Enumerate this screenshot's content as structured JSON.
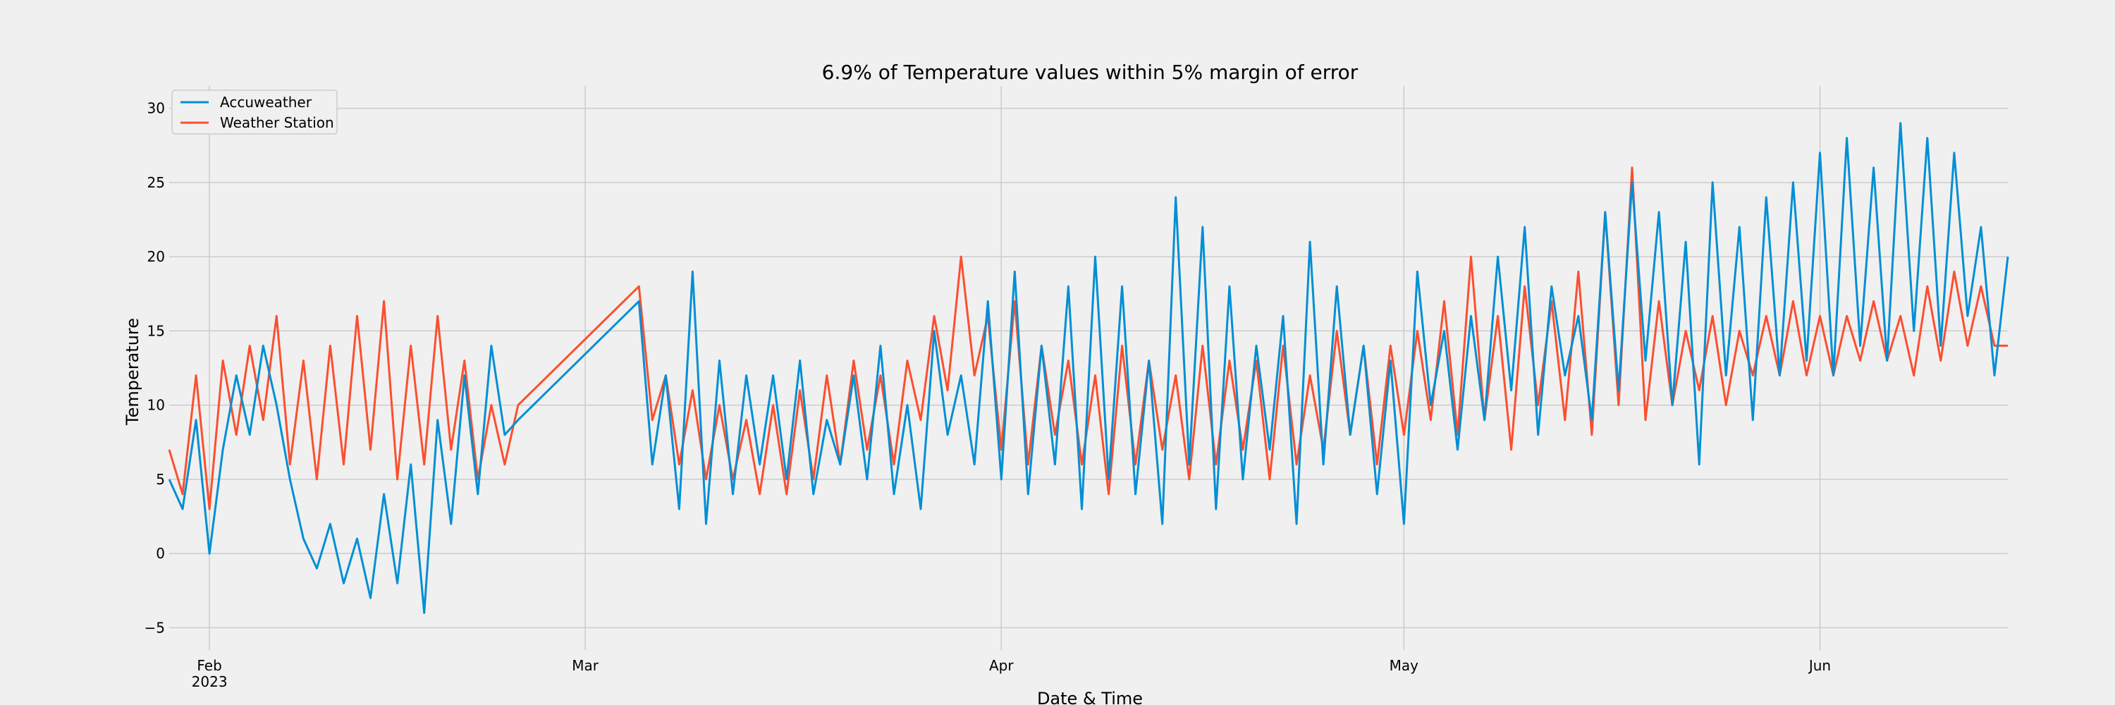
{
  "chart_data": {
    "type": "line",
    "title": "6.9% of Temperature values within 5% margin of error",
    "xlabel": "Date & Time",
    "ylabel": "Temperature",
    "xlim": [
      "2023-01-29",
      "2023-06-15"
    ],
    "ylim": [
      -6.5,
      31.5
    ],
    "y_ticks": [
      -5,
      0,
      5,
      10,
      15,
      20,
      25,
      30
    ],
    "x_ticks": [
      {
        "date": "2023-02-01",
        "label": "Feb",
        "sublabel": "2023"
      },
      {
        "date": "2023-03-01",
        "label": "Mar",
        "sublabel": ""
      },
      {
        "date": "2023-04-01",
        "label": "Apr",
        "sublabel": ""
      },
      {
        "date": "2023-05-01",
        "label": "May",
        "sublabel": ""
      },
      {
        "date": "2023-06-01",
        "label": "Jun",
        "sublabel": ""
      }
    ],
    "grid": true,
    "legend_position": "top-left",
    "series": [
      {
        "name": "Accuweather",
        "color": "#008fd5",
        "points": [
          [
            "2023-01-29",
            5
          ],
          [
            "2023-01-30",
            3
          ],
          [
            "2023-01-31",
            9
          ],
          [
            "2023-02-01",
            0
          ],
          [
            "2023-02-02",
            7
          ],
          [
            "2023-02-03",
            12
          ],
          [
            "2023-02-04",
            8
          ],
          [
            "2023-02-05",
            14
          ],
          [
            "2023-02-06",
            10
          ],
          [
            "2023-02-07",
            5
          ],
          [
            "2023-02-08",
            1
          ],
          [
            "2023-02-09",
            -1
          ],
          [
            "2023-02-10",
            2
          ],
          [
            "2023-02-11",
            -2
          ],
          [
            "2023-02-12",
            1
          ],
          [
            "2023-02-13",
            -3
          ],
          [
            "2023-02-14",
            4
          ],
          [
            "2023-02-15",
            -2
          ],
          [
            "2023-02-16",
            6
          ],
          [
            "2023-02-17",
            -4
          ],
          [
            "2023-02-18",
            9
          ],
          [
            "2023-02-19",
            2
          ],
          [
            "2023-02-20",
            12
          ],
          [
            "2023-02-21",
            4
          ],
          [
            "2023-02-22",
            14
          ],
          [
            "2023-02-23",
            8
          ],
          [
            "2023-02-24",
            9
          ],
          [
            "2023-03-05",
            17
          ],
          [
            "2023-03-06",
            6
          ],
          [
            "2023-03-07",
            12
          ],
          [
            "2023-03-08",
            3
          ],
          [
            "2023-03-09",
            19
          ],
          [
            "2023-03-10",
            2
          ],
          [
            "2023-03-11",
            13
          ],
          [
            "2023-03-12",
            4
          ],
          [
            "2023-03-13",
            12
          ],
          [
            "2023-03-14",
            6
          ],
          [
            "2023-03-15",
            12
          ],
          [
            "2023-03-16",
            5
          ],
          [
            "2023-03-17",
            13
          ],
          [
            "2023-03-18",
            4
          ],
          [
            "2023-03-19",
            9
          ],
          [
            "2023-03-20",
            6
          ],
          [
            "2023-03-21",
            12
          ],
          [
            "2023-03-22",
            5
          ],
          [
            "2023-03-23",
            14
          ],
          [
            "2023-03-24",
            4
          ],
          [
            "2023-03-25",
            10
          ],
          [
            "2023-03-26",
            3
          ],
          [
            "2023-03-27",
            15
          ],
          [
            "2023-03-28",
            8
          ],
          [
            "2023-03-29",
            12
          ],
          [
            "2023-03-30",
            6
          ],
          [
            "2023-03-31",
            17
          ],
          [
            "2023-04-01",
            5
          ],
          [
            "2023-04-02",
            19
          ],
          [
            "2023-04-03",
            4
          ],
          [
            "2023-04-04",
            14
          ],
          [
            "2023-04-05",
            6
          ],
          [
            "2023-04-06",
            18
          ],
          [
            "2023-04-07",
            3
          ],
          [
            "2023-04-08",
            20
          ],
          [
            "2023-04-09",
            5
          ],
          [
            "2023-04-10",
            18
          ],
          [
            "2023-04-11",
            4
          ],
          [
            "2023-04-12",
            13
          ],
          [
            "2023-04-13",
            2
          ],
          [
            "2023-04-14",
            24
          ],
          [
            "2023-04-15",
            6
          ],
          [
            "2023-04-16",
            22
          ],
          [
            "2023-04-17",
            3
          ],
          [
            "2023-04-18",
            18
          ],
          [
            "2023-04-19",
            5
          ],
          [
            "2023-04-20",
            14
          ],
          [
            "2023-04-21",
            7
          ],
          [
            "2023-04-22",
            16
          ],
          [
            "2023-04-23",
            2
          ],
          [
            "2023-04-24",
            21
          ],
          [
            "2023-04-25",
            6
          ],
          [
            "2023-04-26",
            18
          ],
          [
            "2023-04-27",
            8
          ],
          [
            "2023-04-28",
            14
          ],
          [
            "2023-04-29",
            4
          ],
          [
            "2023-04-30",
            13
          ],
          [
            "2023-05-01",
            2
          ],
          [
            "2023-05-02",
            19
          ],
          [
            "2023-05-03",
            10
          ],
          [
            "2023-05-04",
            15
          ],
          [
            "2023-05-05",
            7
          ],
          [
            "2023-05-06",
            16
          ],
          [
            "2023-05-07",
            9
          ],
          [
            "2023-05-08",
            20
          ],
          [
            "2023-05-09",
            11
          ],
          [
            "2023-05-10",
            22
          ],
          [
            "2023-05-11",
            8
          ],
          [
            "2023-05-12",
            18
          ],
          [
            "2023-05-13",
            12
          ],
          [
            "2023-05-14",
            16
          ],
          [
            "2023-05-15",
            9
          ],
          [
            "2023-05-16",
            23
          ],
          [
            "2023-05-17",
            11
          ],
          [
            "2023-05-18",
            25
          ],
          [
            "2023-05-19",
            13
          ],
          [
            "2023-05-20",
            23
          ],
          [
            "2023-05-21",
            10
          ],
          [
            "2023-05-22",
            21
          ],
          [
            "2023-05-23",
            6
          ],
          [
            "2023-05-24",
            25
          ],
          [
            "2023-05-25",
            12
          ],
          [
            "2023-05-26",
            22
          ],
          [
            "2023-05-27",
            9
          ],
          [
            "2023-05-28",
            24
          ],
          [
            "2023-05-29",
            12
          ],
          [
            "2023-05-30",
            25
          ],
          [
            "2023-05-31",
            13
          ],
          [
            "2023-06-01",
            27
          ],
          [
            "2023-06-02",
            12
          ],
          [
            "2023-06-03",
            28
          ],
          [
            "2023-06-04",
            14
          ],
          [
            "2023-06-05",
            26
          ],
          [
            "2023-06-06",
            13
          ],
          [
            "2023-06-07",
            29
          ],
          [
            "2023-06-08",
            15
          ],
          [
            "2023-06-09",
            28
          ],
          [
            "2023-06-10",
            14
          ],
          [
            "2023-06-11",
            27
          ],
          [
            "2023-06-12",
            16
          ],
          [
            "2023-06-13",
            22
          ],
          [
            "2023-06-14",
            12
          ],
          [
            "2023-06-15",
            20
          ]
        ]
      },
      {
        "name": "Weather Station",
        "color": "#fc4f30",
        "points": [
          [
            "2023-01-29",
            7
          ],
          [
            "2023-01-30",
            4
          ],
          [
            "2023-01-31",
            12
          ],
          [
            "2023-02-01",
            3
          ],
          [
            "2023-02-02",
            13
          ],
          [
            "2023-02-03",
            8
          ],
          [
            "2023-02-04",
            14
          ],
          [
            "2023-02-05",
            9
          ],
          [
            "2023-02-06",
            16
          ],
          [
            "2023-02-07",
            6
          ],
          [
            "2023-02-08",
            13
          ],
          [
            "2023-02-09",
            5
          ],
          [
            "2023-02-10",
            14
          ],
          [
            "2023-02-11",
            6
          ],
          [
            "2023-02-12",
            16
          ],
          [
            "2023-02-13",
            7
          ],
          [
            "2023-02-14",
            17
          ],
          [
            "2023-02-15",
            5
          ],
          [
            "2023-02-16",
            14
          ],
          [
            "2023-02-17",
            6
          ],
          [
            "2023-02-18",
            16
          ],
          [
            "2023-02-19",
            7
          ],
          [
            "2023-02-20",
            13
          ],
          [
            "2023-02-21",
            5
          ],
          [
            "2023-02-22",
            10
          ],
          [
            "2023-02-23",
            6
          ],
          [
            "2023-02-24",
            10
          ],
          [
            "2023-03-05",
            18
          ],
          [
            "2023-03-06",
            9
          ],
          [
            "2023-03-07",
            12
          ],
          [
            "2023-03-08",
            6
          ],
          [
            "2023-03-09",
            11
          ],
          [
            "2023-03-10",
            5
          ],
          [
            "2023-03-11",
            10
          ],
          [
            "2023-03-12",
            5
          ],
          [
            "2023-03-13",
            9
          ],
          [
            "2023-03-14",
            4
          ],
          [
            "2023-03-15",
            10
          ],
          [
            "2023-03-16",
            4
          ],
          [
            "2023-03-17",
            11
          ],
          [
            "2023-03-18",
            5
          ],
          [
            "2023-03-19",
            12
          ],
          [
            "2023-03-20",
            6
          ],
          [
            "2023-03-21",
            13
          ],
          [
            "2023-03-22",
            7
          ],
          [
            "2023-03-23",
            12
          ],
          [
            "2023-03-24",
            6
          ],
          [
            "2023-03-25",
            13
          ],
          [
            "2023-03-26",
            9
          ],
          [
            "2023-03-27",
            16
          ],
          [
            "2023-03-28",
            11
          ],
          [
            "2023-03-29",
            20
          ],
          [
            "2023-03-30",
            12
          ],
          [
            "2023-03-31",
            16
          ],
          [
            "2023-04-01",
            7
          ],
          [
            "2023-04-02",
            17
          ],
          [
            "2023-04-03",
            6
          ],
          [
            "2023-04-04",
            14
          ],
          [
            "2023-04-05",
            8
          ],
          [
            "2023-04-06",
            13
          ],
          [
            "2023-04-07",
            6
          ],
          [
            "2023-04-08",
            12
          ],
          [
            "2023-04-09",
            4
          ],
          [
            "2023-04-10",
            14
          ],
          [
            "2023-04-11",
            6
          ],
          [
            "2023-04-12",
            13
          ],
          [
            "2023-04-13",
            7
          ],
          [
            "2023-04-14",
            12
          ],
          [
            "2023-04-15",
            5
          ],
          [
            "2023-04-16",
            14
          ],
          [
            "2023-04-17",
            6
          ],
          [
            "2023-04-18",
            13
          ],
          [
            "2023-04-19",
            7
          ],
          [
            "2023-04-20",
            13
          ],
          [
            "2023-04-21",
            5
          ],
          [
            "2023-04-22",
            14
          ],
          [
            "2023-04-23",
            6
          ],
          [
            "2023-04-24",
            12
          ],
          [
            "2023-04-25",
            7
          ],
          [
            "2023-04-26",
            15
          ],
          [
            "2023-04-27",
            8
          ],
          [
            "2023-04-28",
            14
          ],
          [
            "2023-04-29",
            6
          ],
          [
            "2023-04-30",
            14
          ],
          [
            "2023-05-01",
            8
          ],
          [
            "2023-05-02",
            15
          ],
          [
            "2023-05-03",
            9
          ],
          [
            "2023-05-04",
            17
          ],
          [
            "2023-05-05",
            8
          ],
          [
            "2023-05-06",
            20
          ],
          [
            "2023-05-07",
            9
          ],
          [
            "2023-05-08",
            16
          ],
          [
            "2023-05-09",
            7
          ],
          [
            "2023-05-10",
            18
          ],
          [
            "2023-05-11",
            10
          ],
          [
            "2023-05-12",
            17
          ],
          [
            "2023-05-13",
            9
          ],
          [
            "2023-05-14",
            19
          ],
          [
            "2023-05-15",
            8
          ],
          [
            "2023-05-16",
            23
          ],
          [
            "2023-05-17",
            10
          ],
          [
            "2023-05-18",
            26
          ],
          [
            "2023-05-19",
            9
          ],
          [
            "2023-05-20",
            17
          ],
          [
            "2023-05-21",
            10
          ],
          [
            "2023-05-22",
            15
          ],
          [
            "2023-05-23",
            11
          ],
          [
            "2023-05-24",
            16
          ],
          [
            "2023-05-25",
            10
          ],
          [
            "2023-05-26",
            15
          ],
          [
            "2023-05-27",
            12
          ],
          [
            "2023-05-28",
            16
          ],
          [
            "2023-05-29",
            12
          ],
          [
            "2023-05-30",
            17
          ],
          [
            "2023-05-31",
            12
          ],
          [
            "2023-06-01",
            16
          ],
          [
            "2023-06-02",
            12
          ],
          [
            "2023-06-03",
            16
          ],
          [
            "2023-06-04",
            13
          ],
          [
            "2023-06-05",
            17
          ],
          [
            "2023-06-06",
            13
          ],
          [
            "2023-06-07",
            16
          ],
          [
            "2023-06-08",
            12
          ],
          [
            "2023-06-09",
            18
          ],
          [
            "2023-06-10",
            13
          ],
          [
            "2023-06-11",
            19
          ],
          [
            "2023-06-12",
            14
          ],
          [
            "2023-06-13",
            18
          ],
          [
            "2023-06-14",
            14
          ],
          [
            "2023-06-15",
            14
          ]
        ]
      }
    ]
  }
}
